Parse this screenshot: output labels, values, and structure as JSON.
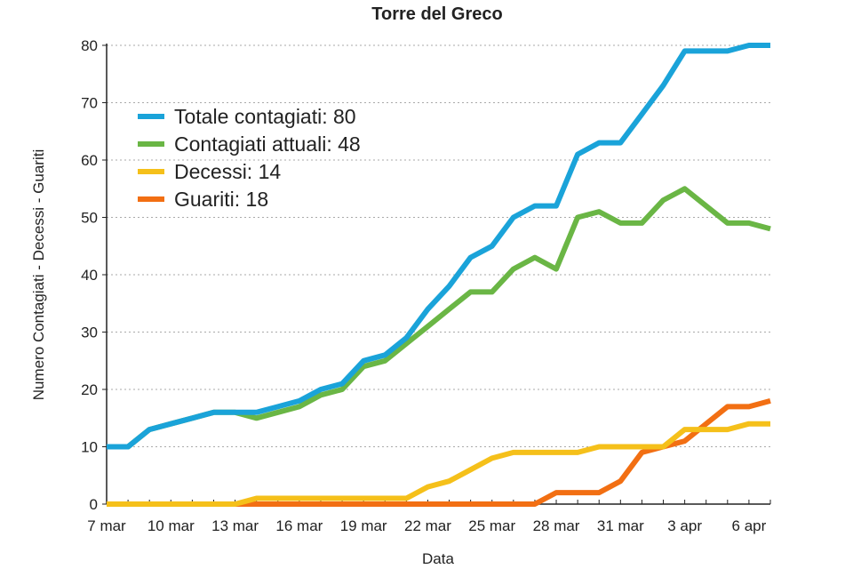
{
  "chart_data": {
    "type": "line",
    "title": "Torre del Greco",
    "xlabel": "Data",
    "ylabel": "Numero Contagiati - Decessi - Guariti",
    "x": [
      "7 mar",
      "8 mar",
      "9 mar",
      "10 mar",
      "11 mar",
      "12 mar",
      "13 mar",
      "14 mar",
      "15 mar",
      "16 mar",
      "17 mar",
      "18 mar",
      "19 mar",
      "20 mar",
      "21 mar",
      "22 mar",
      "23 mar",
      "24 mar",
      "25 mar",
      "26 mar",
      "27 mar",
      "28 mar",
      "29 mar",
      "30 mar",
      "31 mar",
      "1 apr",
      "2 apr",
      "3 apr",
      "4 apr",
      "5 apr",
      "6 apr",
      "7 apr"
    ],
    "x_tick_labels": [
      "7 mar",
      "10 mar",
      "13 mar",
      "16 mar",
      "19 mar",
      "22 mar",
      "25 mar",
      "28 mar",
      "31 mar",
      "3 apr",
      "6 apr"
    ],
    "y_ticks": [
      "0",
      "10",
      "20",
      "30",
      "40",
      "50",
      "60",
      "70",
      "80"
    ],
    "ylim": [
      0,
      80
    ],
    "grid": "horizontal dotted",
    "legend_position": "top-left",
    "series": [
      {
        "name": "Totale contagiati: 80",
        "color": "#1aa3d9",
        "values": [
          10,
          10,
          13,
          14,
          15,
          16,
          16,
          16,
          17,
          18,
          20,
          21,
          25,
          26,
          29,
          34,
          38,
          43,
          45,
          50,
          52,
          52,
          61,
          63,
          63,
          68,
          73,
          79,
          79,
          79,
          80,
          80
        ]
      },
      {
        "name": "Contagiati attuali: 48",
        "color": "#6ab645",
        "values": [
          10,
          10,
          13,
          14,
          15,
          16,
          16,
          15,
          16,
          17,
          19,
          20,
          24,
          25,
          28,
          31,
          34,
          37,
          37,
          41,
          43,
          41,
          50,
          51,
          49,
          49,
          53,
          55,
          52,
          49,
          49,
          48
        ]
      },
      {
        "name": "Decessi: 14",
        "color": "#f5c01a",
        "values": [
          0,
          0,
          0,
          0,
          0,
          0,
          0,
          1,
          1,
          1,
          1,
          1,
          1,
          1,
          1,
          3,
          4,
          6,
          8,
          9,
          9,
          9,
          9,
          10,
          10,
          10,
          10,
          13,
          13,
          13,
          14,
          14
        ]
      },
      {
        "name": "Guariti: 18",
        "color": "#f26f13",
        "values": [
          0,
          0,
          0,
          0,
          0,
          0,
          0,
          0,
          0,
          0,
          0,
          0,
          0,
          0,
          0,
          0,
          0,
          0,
          0,
          0,
          0,
          2,
          2,
          2,
          4,
          9,
          10,
          11,
          14,
          17,
          17,
          18
        ]
      }
    ]
  }
}
